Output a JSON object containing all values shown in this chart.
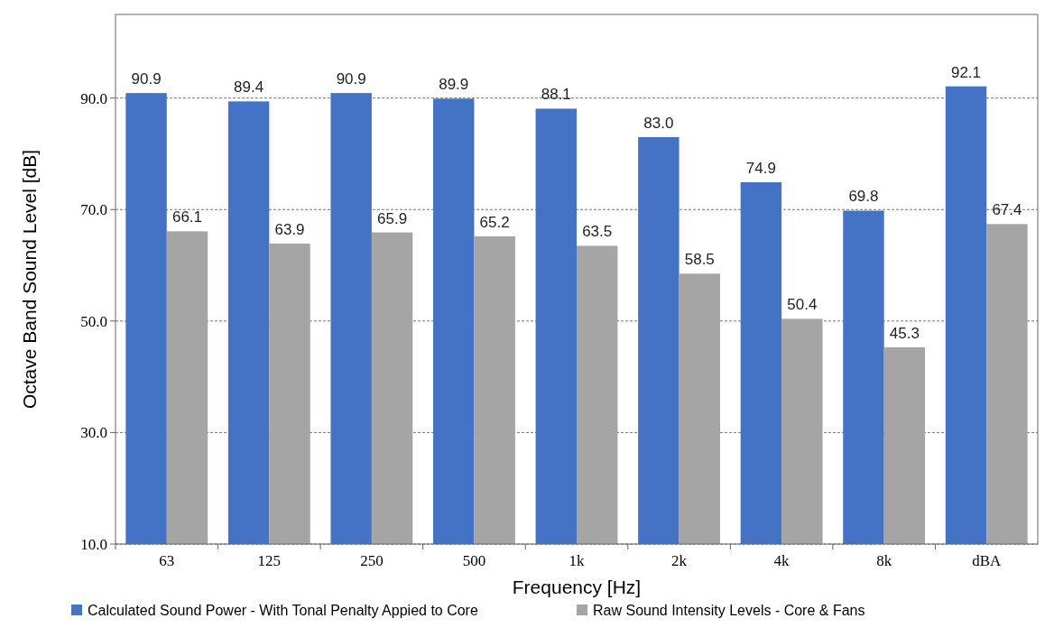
{
  "chart_data": {
    "type": "bar",
    "xlabel": "Frequency [Hz]",
    "ylabel": "Octave Band Sound Level [dB]",
    "categories": [
      "63",
      "125",
      "250",
      "500",
      "1k",
      "2k",
      "4k",
      "8k",
      "dBA"
    ],
    "series": [
      {
        "name": "Calculated Sound Power - With Tonal Penalty Appied to Core",
        "color": "#4472c4",
        "values": [
          90.9,
          89.4,
          90.9,
          89.9,
          88.1,
          83.0,
          74.9,
          69.8,
          92.1
        ],
        "value_labels": [
          "90.9",
          "89.4",
          "90.9",
          "89.9",
          "88.1",
          "83.0",
          "74.9",
          "69.8",
          "92.1"
        ]
      },
      {
        "name": "Raw Sound Intensity Levels - Core & Fans",
        "color": "#a5a5a5",
        "values": [
          66.1,
          63.9,
          65.9,
          65.2,
          63.5,
          58.5,
          50.4,
          45.3,
          67.4
        ],
        "value_labels": [
          "66.1",
          "63.9",
          "65.9",
          "65.2",
          "63.5",
          "58.5",
          "50.4",
          "45.3",
          "67.4"
        ]
      }
    ],
    "ylim": [
      10,
      105
    ],
    "yticks": [
      {
        "value": 10,
        "label": "10.0"
      },
      {
        "value": 30,
        "label": "30.0"
      },
      {
        "value": 50,
        "label": "50.0"
      },
      {
        "value": 70,
        "label": "70.0"
      },
      {
        "value": 90,
        "label": "90.0"
      }
    ],
    "grid": "y",
    "legend": "bottom"
  }
}
